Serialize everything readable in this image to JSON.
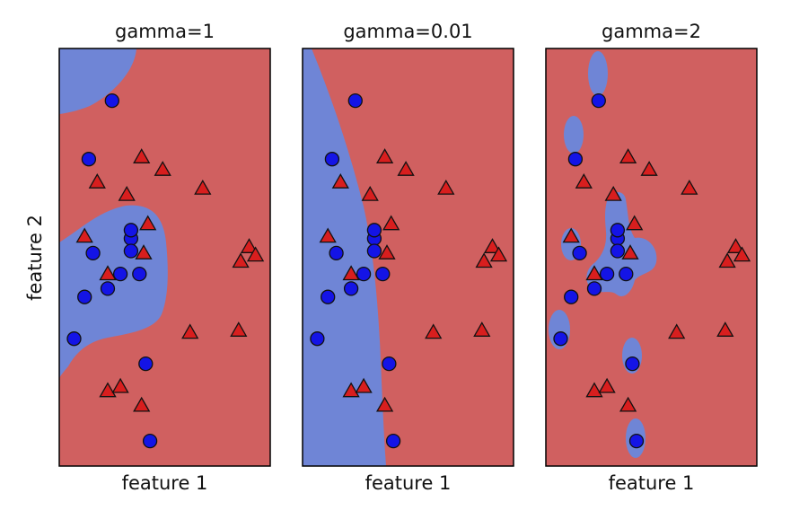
{
  "colors": {
    "region_class0": "#6f85d6",
    "region_class1": "#d06060",
    "marker_class0": "#1414e6",
    "marker_class1": "#d81e1e",
    "marker_edge": "#111111",
    "axes_frame": "#000000"
  },
  "figure": {
    "ylabel": "feature 2"
  },
  "chart_data": [
    {
      "type": "scatter",
      "title": "gamma=1",
      "xlabel": "feature 1",
      "ylabel": "feature 2",
      "grid": false,
      "legend": "none",
      "xlim": [
        0,
        10
      ],
      "ylim": [
        0,
        20
      ],
      "series": [
        {
          "marker": "circle",
          "class": 0,
          "x": [
            2.5,
            1.4,
            1.6,
            3.4,
            3.4,
            3.4,
            2.9,
            2.3,
            1.2,
            3.8,
            0.7,
            4.1,
            4.3
          ],
          "y": [
            17.5,
            14.7,
            10.2,
            10.9,
            11.3,
            10.3,
            9.2,
            8.5,
            8.1,
            9.2,
            6.1,
            4.9,
            1.2
          ]
        },
        {
          "marker": "triangle",
          "class": 1,
          "x": [
            3.9,
            4.9,
            1.8,
            3.2,
            6.8,
            4.2,
            1.2,
            9.0,
            9.3,
            8.6,
            4.0,
            2.3,
            6.2,
            8.5,
            2.3,
            2.9,
            3.9
          ],
          "y": [
            14.8,
            14.2,
            13.6,
            13.0,
            13.3,
            11.6,
            11.0,
            10.5,
            10.1,
            9.8,
            10.2,
            9.2,
            6.4,
            6.5,
            3.6,
            3.8,
            2.9
          ]
        }
      ],
      "boundary": "blue region lower-left blob and top-left corner"
    },
    {
      "type": "scatter",
      "title": "gamma=0.01",
      "xlabel": "feature 1",
      "ylabel": "",
      "grid": false,
      "legend": "none",
      "xlim": [
        0,
        10
      ],
      "ylim": [
        0,
        20
      ],
      "series": [
        {
          "marker": "circle",
          "class": 0,
          "x": [
            2.5,
            1.4,
            1.6,
            3.4,
            3.4,
            3.4,
            2.9,
            2.3,
            1.2,
            3.8,
            0.7,
            4.1,
            4.3
          ],
          "y": [
            17.5,
            14.7,
            10.2,
            10.9,
            11.3,
            10.3,
            9.2,
            8.5,
            8.1,
            9.2,
            6.1,
            4.9,
            1.2
          ]
        },
        {
          "marker": "triangle",
          "class": 1,
          "x": [
            3.9,
            4.9,
            1.8,
            3.2,
            6.8,
            4.2,
            1.2,
            9.0,
            9.3,
            8.6,
            4.0,
            2.3,
            6.2,
            8.5,
            2.3,
            2.9,
            3.9
          ],
          "y": [
            14.8,
            14.2,
            13.6,
            13.0,
            13.3,
            11.6,
            11.0,
            10.5,
            10.1,
            9.8,
            10.2,
            9.2,
            6.4,
            6.5,
            3.6,
            3.8,
            2.9
          ]
        }
      ],
      "boundary": "blue region on left side"
    },
    {
      "type": "scatter",
      "title": "gamma=2",
      "xlabel": "feature 1",
      "ylabel": "",
      "grid": false,
      "legend": "none",
      "xlim": [
        0,
        10
      ],
      "ylim": [
        0,
        20
      ],
      "series": [
        {
          "marker": "circle",
          "class": 0,
          "x": [
            2.5,
            1.4,
            1.6,
            3.4,
            3.4,
            3.4,
            2.9,
            2.3,
            1.2,
            3.8,
            0.7,
            4.1,
            4.3
          ],
          "y": [
            17.5,
            14.7,
            10.2,
            10.9,
            11.3,
            10.3,
            9.2,
            8.5,
            8.1,
            9.2,
            6.1,
            4.9,
            1.2
          ]
        },
        {
          "marker": "triangle",
          "class": 1,
          "x": [
            3.9,
            4.9,
            1.8,
            3.2,
            6.8,
            4.2,
            1.2,
            9.0,
            9.3,
            8.6,
            4.0,
            2.3,
            6.2,
            8.5,
            2.3,
            2.9,
            3.9
          ],
          "y": [
            14.8,
            14.2,
            13.6,
            13.0,
            13.3,
            11.6,
            11.0,
            10.5,
            10.1,
            9.8,
            10.2,
            9.2,
            6.4,
            6.5,
            3.6,
            3.8,
            2.9
          ]
        }
      ],
      "boundary": "small blue islands around each circle"
    }
  ]
}
